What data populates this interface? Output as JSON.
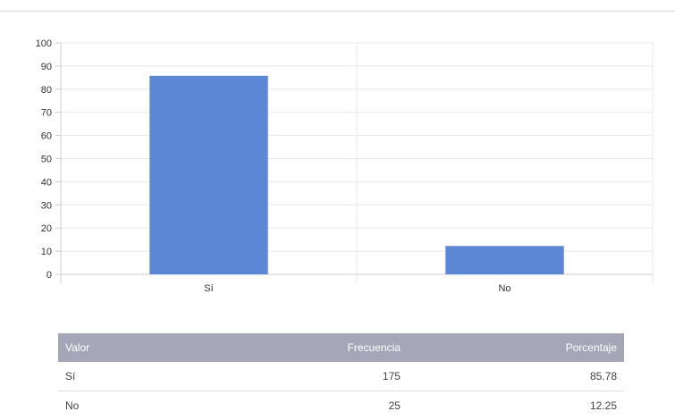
{
  "chart_data": {
    "type": "bar",
    "categories": [
      "Sí",
      "No"
    ],
    "values": [
      85.78,
      12.25
    ],
    "ylim": [
      0,
      100
    ],
    "yticks": [
      0,
      10,
      20,
      30,
      40,
      50,
      60,
      70,
      80,
      90,
      100
    ],
    "grid": true,
    "bar_color": "#5b87d5"
  },
  "table": {
    "headers": [
      "Valor",
      "Frecuencia",
      "Porcentaje"
    ],
    "rows": [
      [
        "Sí",
        "175",
        "85.78"
      ],
      [
        "No",
        "25",
        "12.25"
      ]
    ]
  },
  "colors": {
    "table_header_bg": "#a5a7b8",
    "grid": "#e8e8e8"
  }
}
